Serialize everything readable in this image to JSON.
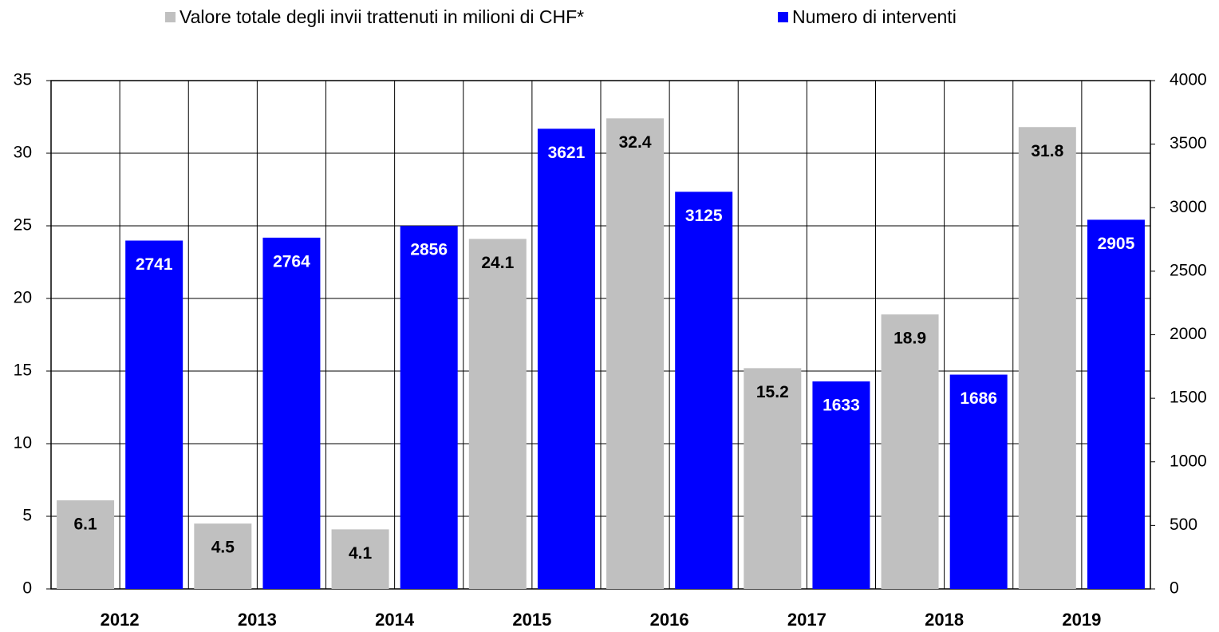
{
  "chart_data": {
    "type": "bar",
    "categories": [
      "2012",
      "2013",
      "2014",
      "2015",
      "2016",
      "2017",
      "2018",
      "2019"
    ],
    "series": [
      {
        "name": "Valore totale degli invii trattenuti in milioni di CHF*",
        "color": "#c0c0c0",
        "label_color": "#000000",
        "values": [
          6.1,
          4.5,
          4.1,
          24.1,
          32.4,
          15.2,
          18.9,
          31.8
        ]
      },
      {
        "name": "Numero di interventi",
        "color": "#0000ff",
        "label_color": "#ffffff",
        "axis": "y2",
        "values": [
          2741,
          2764,
          2856,
          3621,
          3125,
          1633,
          1686,
          2905
        ]
      }
    ],
    "ylim": [
      0,
      35
    ],
    "yticks": [
      0,
      5,
      10,
      15,
      20,
      25,
      30,
      35
    ],
    "y2lim": [
      0,
      4000
    ],
    "y2ticks": [
      0,
      500,
      1000,
      1500,
      2000,
      2500,
      3000,
      3500,
      4000
    ],
    "grid": true
  }
}
